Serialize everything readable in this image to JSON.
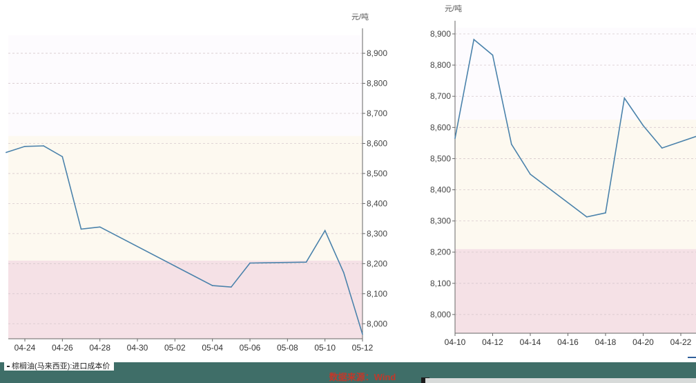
{
  "chart_data": [
    {
      "type": "line",
      "unit_label": "元/吨",
      "x": [
        "04-23",
        "04-24",
        "04-25",
        "04-26",
        "04-27",
        "04-28",
        "05-04",
        "05-05",
        "05-06",
        "05-09",
        "05-10",
        "05-11",
        "05-12"
      ],
      "y": [
        8570,
        8590,
        8592,
        8556,
        8315,
        8322,
        8127,
        8122,
        8202,
        8205,
        8310,
        8170,
        7965
      ],
      "x_ticks": [
        "04-24",
        "04-26",
        "04-28",
        "04-30",
        "05-02",
        "05-04",
        "05-06",
        "05-08",
        "05-10",
        "05-12"
      ],
      "y_ticks": [
        "8,000",
        "8,100",
        "8,200",
        "8,300",
        "8,400",
        "8,500",
        "8,600",
        "8,700",
        "8,800",
        "8,900"
      ],
      "ylim": [
        7950,
        8960
      ],
      "bands": [
        {
          "from": 7950,
          "to": 8210,
          "color": "#f5e1e6"
        },
        {
          "from": 8210,
          "to": 8625,
          "color": "#fdf9f0"
        },
        {
          "from": 8625,
          "to": 8960,
          "color": "#fdfbfe"
        }
      ],
      "grid": true,
      "line_color": "#4a82ab"
    },
    {
      "type": "line",
      "unit_label": "元/吨",
      "x": [
        "04-10",
        "04-11",
        "04-12",
        "04-13",
        "04-14",
        "04-17",
        "04-18",
        "04-19",
        "04-20",
        "04-21",
        "04-23"
      ],
      "y": [
        8565,
        8882,
        8832,
        8546,
        8450,
        8313,
        8326,
        8694,
        8606,
        8534,
        8575
      ],
      "x_ticks": [
        "04-10",
        "04-12",
        "04-14",
        "04-16",
        "04-18",
        "04-20",
        "04-22"
      ],
      "y_ticks": [
        "8,000",
        "8,100",
        "8,200",
        "8,300",
        "8,400",
        "8,500",
        "8,600",
        "8,700",
        "8,800",
        "8,900"
      ],
      "ylim": [
        7940,
        8920
      ],
      "bands": [
        {
          "from": 7940,
          "to": 8210,
          "color": "#f5e1e6"
        },
        {
          "from": 8210,
          "to": 8625,
          "color": "#fdf9f0"
        },
        {
          "from": 8625,
          "to": 8920,
          "color": "#fdfbfe"
        }
      ],
      "grid": true,
      "line_color": "#4a82ab"
    }
  ],
  "legend": {
    "label": "棕榈油(马来西亚):进口成本价"
  },
  "footer": {
    "source": "数据来源：Wind"
  },
  "colors": {
    "footer_bg": "#3f6e68",
    "source_text": "#c0392b"
  }
}
